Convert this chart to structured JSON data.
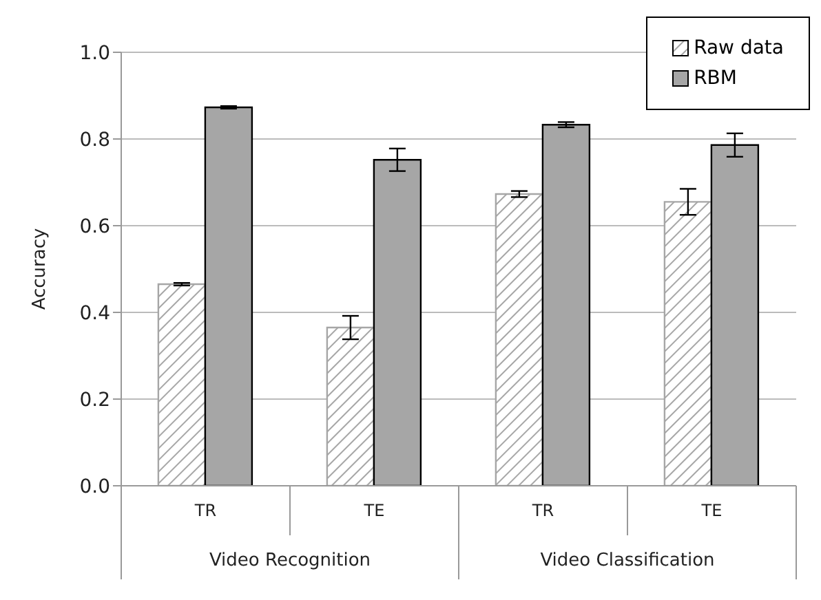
{
  "chart_data": {
    "type": "bar",
    "ylabel": "Accuracy",
    "categories": [
      "TR",
      "TE",
      "TR",
      "TE"
    ],
    "annotations": [
      "Video Recognition",
      "Video Classification"
    ],
    "series": [
      {
        "name": "Raw data",
        "color": "#a6a6a6",
        "values": [
          0.465,
          0.365,
          0.673,
          0.655
        ],
        "errors": [
          0.003,
          0.027,
          0.007,
          0.03
        ]
      },
      {
        "name": "RBM",
        "color": "#a6a6a6",
        "values": [
          0.873,
          0.752,
          0.833,
          0.786
        ],
        "errors": [
          0.003,
          0.026,
          0.006,
          0.027
        ]
      }
    ],
    "ylim": [
      0,
      1
    ],
    "yticks": [
      {
        "value": 0,
        "label": "0.0"
      },
      {
        "value": 0.2,
        "label": "0.2"
      },
      {
        "value": 0.4,
        "label": "0.4"
      },
      {
        "value": 0.6,
        "label": "0.6"
      },
      {
        "value": 0.8,
        "label": "0.8"
      },
      {
        "value": 1,
        "label": "1.0"
      }
    ],
    "grid": "y",
    "legend": "top right"
  }
}
